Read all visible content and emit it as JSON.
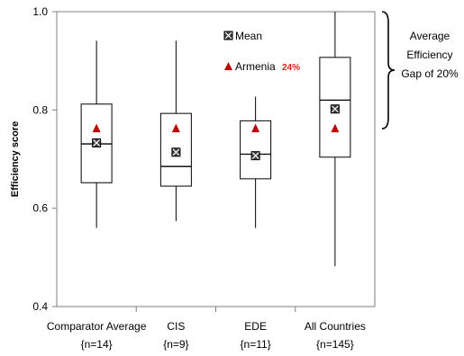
{
  "chart_data": {
    "type": "boxplot",
    "title": "",
    "ylabel": "Efficiency score",
    "xlabel": "",
    "ylim": [
      0.4,
      1.0
    ],
    "yticks": [
      0.4,
      0.6,
      0.8,
      1.0
    ],
    "ytick_labels": [
      "0.4",
      "0.6",
      "0.8",
      "1.0"
    ],
    "grid": false,
    "categories": [
      {
        "label": "Comparator Average",
        "n": "{n=14}"
      },
      {
        "label": "CIS",
        "n": "{n=9}"
      },
      {
        "label": "EDE",
        "n": "{n=11}"
      },
      {
        "label": "All Countries",
        "n": "{n=145}"
      }
    ],
    "boxes": [
      {
        "min": 0.56,
        "q1": 0.652,
        "median": 0.731,
        "q3": 0.812,
        "max": 0.941,
        "mean": 0.733,
        "armenia": 0.762
      },
      {
        "min": 0.574,
        "q1": 0.645,
        "median": 0.685,
        "q3": 0.793,
        "max": 0.941,
        "mean": 0.714,
        "armenia": 0.762
      },
      {
        "min": 0.56,
        "q1": 0.66,
        "median": 0.71,
        "q3": 0.778,
        "max": 0.827,
        "mean": 0.707,
        "armenia": 0.762
      },
      {
        "min": 0.482,
        "q1": 0.704,
        "median": 0.82,
        "q3": 0.907,
        "max": 1.0,
        "mean": 0.802,
        "armenia": 0.762
      }
    ],
    "legend": {
      "placement": "top-center",
      "mean_label": "Mean",
      "armenia_label": "Armenia",
      "armenia_value": "24%"
    },
    "annotation": {
      "lines": [
        "Average",
        "Efficiency",
        "Gap of 20%"
      ],
      "from": 0.762,
      "to": 1.0
    },
    "colors": {
      "armenia_marker": "#c00000",
      "armenia_value_text": "#e0201a",
      "axis": "#7f7f7f",
      "box": "#000000",
      "mean_marker_fill": "#404040"
    }
  }
}
